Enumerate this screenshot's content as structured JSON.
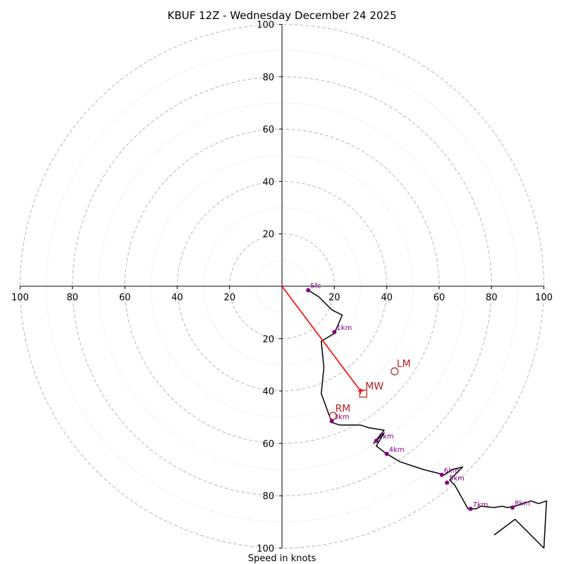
{
  "chart_data": {
    "type": "hodograph",
    "title": "KBUF 12Z - Wednesday December 24 2025",
    "xlabel": "Speed in knots",
    "units": "knots",
    "xlim": [
      -100,
      100
    ],
    "ylim": [
      -100,
      100
    ],
    "rings": {
      "major": [
        20,
        40,
        60,
        80,
        100
      ],
      "minor": [
        10,
        30,
        50,
        70,
        90
      ]
    },
    "x_ticks": [
      {
        "value": -100,
        "label": "100"
      },
      {
        "value": -80,
        "label": "80"
      },
      {
        "value": -60,
        "label": "60"
      },
      {
        "value": -40,
        "label": "40"
      },
      {
        "value": -20,
        "label": "20"
      },
      {
        "value": 20,
        "label": "20"
      },
      {
        "value": 40,
        "label": "40"
      },
      {
        "value": 60,
        "label": "60"
      },
      {
        "value": 80,
        "label": "80"
      },
      {
        "value": 100,
        "label": "100"
      }
    ],
    "y_ticks": [
      {
        "value": 100,
        "label": "100"
      },
      {
        "value": 80,
        "label": "80"
      },
      {
        "value": 60,
        "label": "60"
      },
      {
        "value": 40,
        "label": "40"
      },
      {
        "value": 20,
        "label": "20"
      },
      {
        "value": -20,
        "label": "20"
      },
      {
        "value": -40,
        "label": "40"
      },
      {
        "value": -60,
        "label": "60"
      },
      {
        "value": -80,
        "label": "80"
      },
      {
        "value": -100,
        "label": "100"
      }
    ],
    "trace": {
      "color": "#000000",
      "points": [
        [
          10,
          -1.5
        ],
        [
          14,
          -4
        ],
        [
          19,
          -9
        ],
        [
          23,
          -11
        ],
        [
          20,
          -18
        ],
        [
          15,
          -21
        ],
        [
          16,
          -31
        ],
        [
          15,
          -41
        ],
        [
          19,
          -52
        ],
        [
          22,
          -53
        ],
        [
          30,
          -53
        ],
        [
          33,
          -54
        ],
        [
          39,
          -55
        ],
        [
          35,
          -60
        ],
        [
          39,
          -56
        ],
        [
          36,
          -61
        ],
        [
          40,
          -64
        ],
        [
          45,
          -67
        ],
        [
          54,
          -70
        ],
        [
          62,
          -72
        ],
        [
          65,
          -70
        ],
        [
          69,
          -69
        ],
        [
          64,
          -74
        ],
        [
          66,
          -76
        ],
        [
          71,
          -85
        ],
        [
          74,
          -85
        ],
        [
          76,
          -84
        ],
        [
          81,
          -84.5
        ],
        [
          84,
          -84
        ],
        [
          86,
          -84.5
        ],
        [
          89,
          -84
        ],
        [
          95,
          -82
        ],
        [
          98,
          -83
        ],
        [
          101,
          -82
        ],
        [
          100,
          -100
        ],
        [
          89,
          -89
        ],
        [
          81,
          -95
        ]
      ]
    },
    "height_markers": [
      {
        "label": "Sfc",
        "u": 10,
        "v": -1.5
      },
      {
        "label": "1km",
        "u": 20,
        "v": -17.5
      },
      {
        "label": "3km",
        "u": 19,
        "v": -51.5
      },
      {
        "label": "2km",
        "u": 36,
        "v": -59
      },
      {
        "label": "4km",
        "u": 40,
        "v": -64
      },
      {
        "label": "6km",
        "u": 61,
        "v": -72
      },
      {
        "label": "5km",
        "u": 63,
        "v": -75
      },
      {
        "label": "7km",
        "u": 72,
        "v": -85
      },
      {
        "label": "8km",
        "u": 88,
        "v": -84.5
      }
    ],
    "shear_vector": {
      "from": [
        0,
        0
      ],
      "to": [
        30,
        -40
      ],
      "color": "#ff0000"
    },
    "storm_motion": [
      {
        "label": "MW",
        "u": 31,
        "v": -41,
        "marker": "square"
      },
      {
        "label": "LM",
        "u": 43,
        "v": -32.5,
        "marker": "circle"
      },
      {
        "label": "RM",
        "u": 19.5,
        "v": -49.5,
        "marker": "circle"
      }
    ]
  },
  "colors": {
    "ring": "#bdbdbd",
    "axis": "#000000",
    "marker": "#800080",
    "storm_motion": "#b22222",
    "shear": "#ff0000"
  }
}
